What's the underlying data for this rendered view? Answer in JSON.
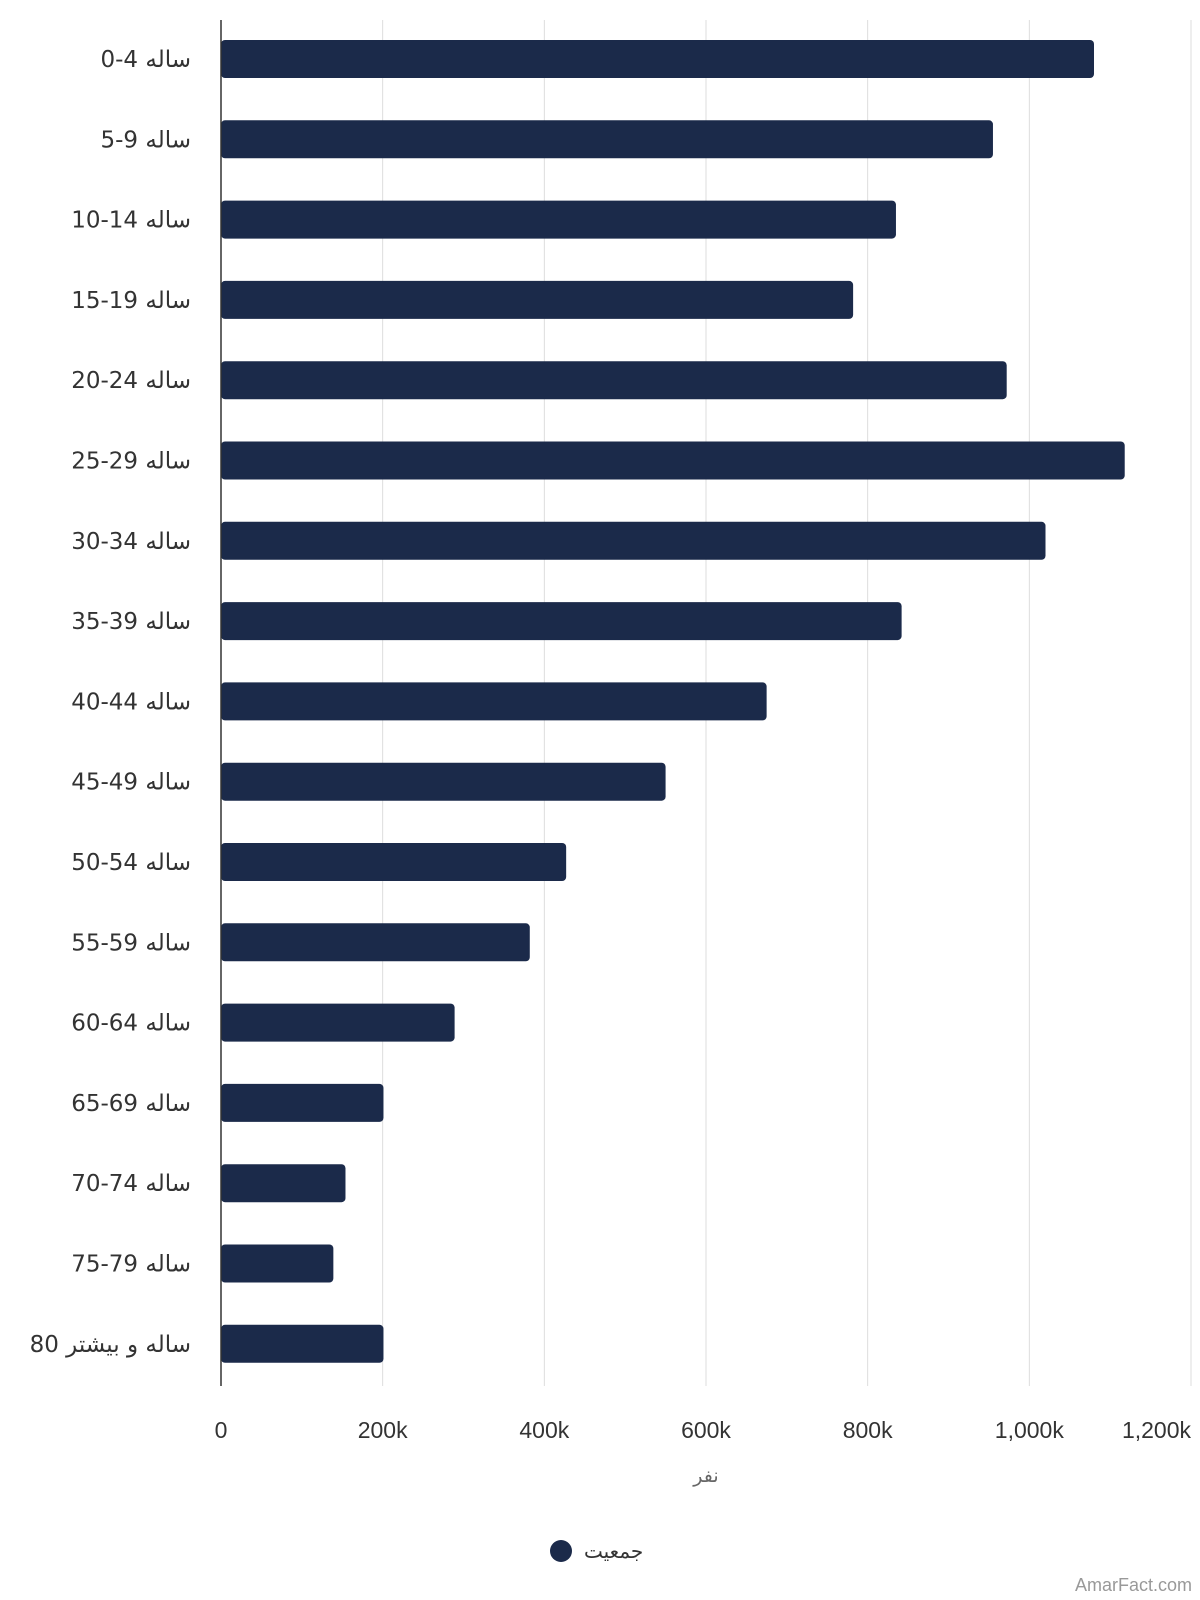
{
  "chart_data": {
    "type": "bar",
    "orientation": "horizontal",
    "categories": [
      "0-4 ساله",
      "5-9 ساله",
      "10-14 ساله",
      "15-19 ساله",
      "20-24 ساله",
      "25-29 ساله",
      "30-34 ساله",
      "35-39 ساله",
      "40-44 ساله",
      "45-49 ساله",
      "50-54 ساله",
      "55-59 ساله",
      "60-64 ساله",
      "65-69 ساله",
      "70-74 ساله",
      "75-79 ساله",
      "80 ساله و بیشتر"
    ],
    "series": [
      {
        "name": "جمعیت",
        "color": "#1b2a4a",
        "values": [
          1080000,
          955000,
          835000,
          782000,
          972000,
          1118000,
          1020000,
          842000,
          675000,
          550000,
          427000,
          382000,
          289000,
          201000,
          154000,
          139000,
          201000
        ]
      }
    ],
    "xlabel": "نفر",
    "ylabel": "",
    "xlim": [
      0,
      1200000
    ],
    "xticks": [
      0,
      200000,
      400000,
      600000,
      800000,
      1000000,
      1200000
    ],
    "xtick_labels": [
      "0",
      "200k",
      "400k",
      "600k",
      "800k",
      "1,000k",
      "1,200k"
    ],
    "grid": "vertical",
    "legend_position": "bottom-center"
  },
  "credit": "AmarFact.com"
}
